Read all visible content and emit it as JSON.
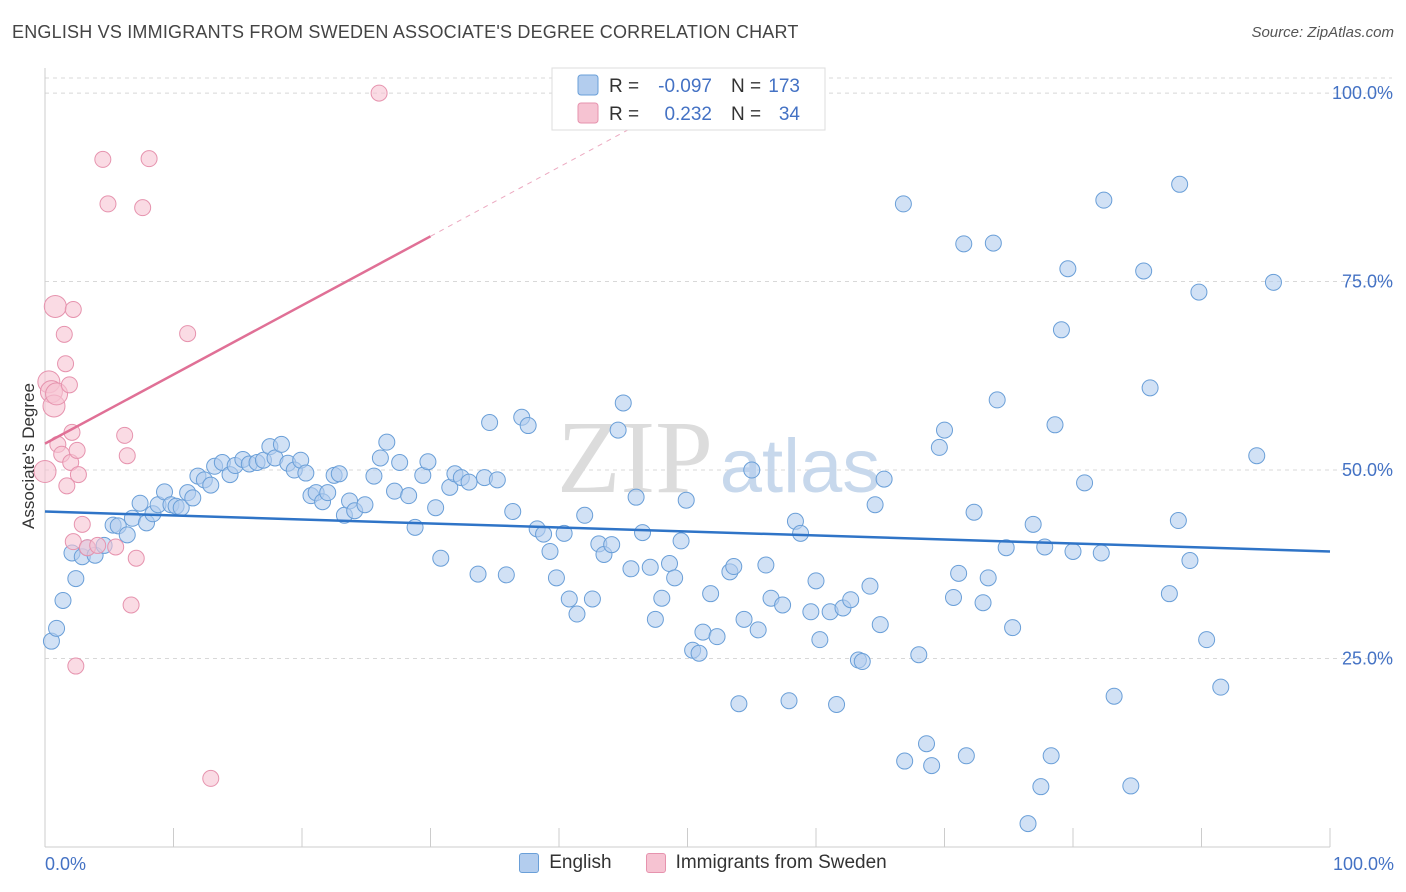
{
  "header": {
    "title": "ENGLISH VS IMMIGRANTS FROM SWEDEN ASSOCIATE'S DEGREE CORRELATION CHART",
    "source": "Source: ZipAtlas.com"
  },
  "watermark": {
    "zip": "ZIP",
    "atlas": "atlas"
  },
  "legend_box": {
    "rows": [
      {
        "r_label": "R =",
        "r_value": "-0.097",
        "n_label": "N =",
        "n_value": "173"
      },
      {
        "r_label": "R =",
        "r_value": "0.232",
        "n_label": "N =",
        "n_value": "34"
      }
    ]
  },
  "bottom_legend": {
    "items": [
      {
        "label": "English"
      },
      {
        "label": "Immigrants from Sweden"
      }
    ]
  },
  "colors": {
    "english_fill": "#b3cdee",
    "english_stroke": "#6a9fd8",
    "english_line": "#2f74c7",
    "sweden_fill": "#f6c3d2",
    "sweden_stroke": "#e693ae",
    "sweden_line": "#e07096",
    "accent_text": "#4472c4",
    "grid": "#d8d8d8"
  },
  "chart_data": {
    "type": "scatter",
    "title": "ENGLISH VS IMMIGRANTS FROM SWEDEN ASSOCIATE'S DEGREE CORRELATION CHART",
    "xlabel": "",
    "ylabel": "Associate's Degree",
    "xlim": [
      0,
      100
    ],
    "ylim": [
      0,
      102
    ],
    "x_tick_labels": [
      "0.0%",
      "100.0%"
    ],
    "y_ticks": [
      {
        "value": 25,
        "label": "25.0%"
      },
      {
        "value": 50,
        "label": "50.0%"
      },
      {
        "value": 75,
        "label": "75.0%"
      },
      {
        "value": 100,
        "label": "100.0%"
      }
    ],
    "grid": true,
    "legend_position": "top-center",
    "series": [
      {
        "name": "English",
        "R": -0.097,
        "N": 173,
        "trend": {
          "x": [
            0,
            100
          ],
          "y": [
            44.5,
            39.2
          ]
        },
        "points": [
          [
            0.5,
            27.3
          ],
          [
            0.9,
            29.0
          ],
          [
            1.4,
            32.7
          ],
          [
            2.1,
            39.0
          ],
          [
            2.4,
            35.6
          ],
          [
            2.9,
            38.5
          ],
          [
            3.3,
            39.7
          ],
          [
            3.9,
            38.7
          ],
          [
            4.6,
            40.0
          ],
          [
            5.3,
            42.7
          ],
          [
            5.7,
            42.6
          ],
          [
            6.4,
            41.4
          ],
          [
            6.8,
            43.6
          ],
          [
            7.4,
            45.6
          ],
          [
            7.9,
            43.0
          ],
          [
            8.4,
            44.2
          ],
          [
            8.8,
            45.4
          ],
          [
            9.3,
            47.1
          ],
          [
            9.8,
            45.4
          ],
          [
            10.2,
            45.2
          ],
          [
            10.6,
            45.0
          ],
          [
            11.1,
            47.0
          ],
          [
            11.5,
            46.3
          ],
          [
            11.9,
            49.2
          ],
          [
            12.4,
            48.7
          ],
          [
            12.9,
            48.0
          ],
          [
            13.2,
            50.5
          ],
          [
            13.8,
            51.0
          ],
          [
            14.4,
            49.4
          ],
          [
            14.8,
            50.6
          ],
          [
            15.4,
            51.4
          ],
          [
            15.9,
            50.8
          ],
          [
            16.5,
            51.0
          ],
          [
            17.0,
            51.3
          ],
          [
            17.5,
            53.1
          ],
          [
            17.9,
            51.6
          ],
          [
            18.4,
            53.4
          ],
          [
            18.9,
            50.9
          ],
          [
            19.4,
            50.0
          ],
          [
            19.9,
            51.3
          ],
          [
            20.3,
            49.6
          ],
          [
            20.7,
            46.6
          ],
          [
            21.1,
            47.0
          ],
          [
            21.6,
            45.8
          ],
          [
            22.0,
            47.0
          ],
          [
            22.5,
            49.3
          ],
          [
            22.9,
            49.5
          ],
          [
            23.3,
            44.0
          ],
          [
            23.7,
            45.9
          ],
          [
            24.1,
            44.6
          ],
          [
            24.9,
            45.4
          ],
          [
            25.6,
            49.2
          ],
          [
            26.1,
            51.6
          ],
          [
            26.6,
            53.7
          ],
          [
            27.2,
            47.2
          ],
          [
            27.6,
            51.0
          ],
          [
            28.3,
            46.6
          ],
          [
            28.8,
            42.4
          ],
          [
            29.4,
            49.3
          ],
          [
            29.8,
            51.1
          ],
          [
            30.4,
            45.0
          ],
          [
            30.8,
            38.3
          ],
          [
            31.5,
            47.7
          ],
          [
            31.9,
            49.5
          ],
          [
            32.4,
            49.0
          ],
          [
            33.0,
            48.4
          ],
          [
            33.7,
            36.2
          ],
          [
            34.2,
            49.0
          ],
          [
            34.6,
            56.3
          ],
          [
            35.2,
            48.7
          ],
          [
            35.9,
            36.1
          ],
          [
            36.4,
            44.5
          ],
          [
            37.1,
            57.0
          ],
          [
            37.6,
            55.9
          ],
          [
            38.3,
            42.2
          ],
          [
            38.8,
            41.5
          ],
          [
            39.3,
            39.2
          ],
          [
            39.8,
            35.7
          ],
          [
            40.4,
            41.6
          ],
          [
            40.8,
            32.9
          ],
          [
            41.4,
            30.9
          ],
          [
            42.0,
            44.0
          ],
          [
            42.6,
            32.9
          ],
          [
            43.1,
            40.2
          ],
          [
            43.5,
            38.8
          ],
          [
            44.1,
            40.1
          ],
          [
            44.6,
            55.3
          ],
          [
            45.0,
            58.9
          ],
          [
            45.6,
            36.9
          ],
          [
            46.0,
            46.4
          ],
          [
            46.5,
            41.7
          ],
          [
            47.1,
            37.1
          ],
          [
            47.5,
            30.2
          ],
          [
            48.0,
            33.0
          ],
          [
            48.6,
            37.6
          ],
          [
            49.0,
            35.7
          ],
          [
            49.5,
            40.6
          ],
          [
            49.9,
            46.0
          ],
          [
            50.4,
            26.1
          ],
          [
            50.9,
            25.7
          ],
          [
            51.2,
            28.5
          ],
          [
            51.8,
            33.6
          ],
          [
            52.3,
            27.9
          ],
          [
            53.3,
            36.5
          ],
          [
            53.6,
            37.2
          ],
          [
            54.0,
            19.0
          ],
          [
            54.4,
            30.2
          ],
          [
            55.0,
            50.0
          ],
          [
            55.5,
            28.8
          ],
          [
            56.1,
            37.4
          ],
          [
            56.5,
            33.0
          ],
          [
            57.4,
            32.1
          ],
          [
            57.9,
            19.4
          ],
          [
            58.4,
            43.2
          ],
          [
            58.8,
            41.6
          ],
          [
            59.6,
            31.2
          ],
          [
            60.0,
            35.3
          ],
          [
            60.3,
            27.5
          ],
          [
            61.1,
            31.2
          ],
          [
            61.6,
            18.9
          ],
          [
            62.1,
            31.7
          ],
          [
            62.7,
            32.8
          ],
          [
            63.3,
            24.8
          ],
          [
            63.6,
            24.6
          ],
          [
            64.2,
            34.6
          ],
          [
            64.6,
            45.4
          ],
          [
            65.0,
            29.5
          ],
          [
            65.3,
            48.8
          ],
          [
            66.9,
            11.4
          ],
          [
            68.0,
            25.5
          ],
          [
            68.6,
            13.7
          ],
          [
            69.0,
            10.8
          ],
          [
            69.6,
            53.0
          ],
          [
            70.0,
            55.3
          ],
          [
            70.7,
            33.1
          ],
          [
            71.1,
            36.3
          ],
          [
            71.5,
            80.0
          ],
          [
            71.7,
            12.1
          ],
          [
            72.3,
            44.4
          ],
          [
            73.0,
            32.4
          ],
          [
            73.4,
            35.7
          ],
          [
            74.1,
            59.3
          ],
          [
            74.8,
            39.7
          ],
          [
            75.3,
            29.1
          ],
          [
            76.5,
            3.1
          ],
          [
            76.9,
            42.8
          ],
          [
            77.5,
            8.0
          ],
          [
            77.8,
            39.8
          ],
          [
            78.3,
            12.1
          ],
          [
            78.6,
            56.0
          ],
          [
            79.1,
            68.6
          ],
          [
            80.0,
            39.2
          ],
          [
            80.9,
            48.3
          ],
          [
            82.2,
            39.0
          ],
          [
            83.2,
            20.0
          ],
          [
            84.5,
            8.1
          ],
          [
            86.0,
            60.9
          ],
          [
            87.5,
            33.6
          ],
          [
            88.2,
            43.3
          ],
          [
            89.1,
            38.0
          ],
          [
            90.4,
            27.5
          ],
          [
            91.5,
            21.2
          ],
          [
            94.3,
            51.9
          ],
          [
            66.8,
            85.3
          ],
          [
            73.8,
            80.1
          ],
          [
            79.6,
            76.7
          ],
          [
            82.4,
            85.8
          ],
          [
            85.5,
            76.4
          ],
          [
            88.3,
            87.9
          ],
          [
            89.8,
            73.6
          ],
          [
            95.6,
            74.9
          ]
        ]
      },
      {
        "name": "Immigrants from Sweden",
        "R": 0.232,
        "N": 34,
        "trend": {
          "x": [
            0,
            30
          ],
          "y": [
            53.5,
            81.0
          ]
        },
        "trend_dashed": {
          "x": [
            30,
            46
          ],
          "y": [
            81.0,
            95.7
          ]
        },
        "points": [
          [
            0.0,
            49.8
          ],
          [
            0.3,
            61.7
          ],
          [
            0.5,
            60.4
          ],
          [
            0.7,
            58.5
          ],
          [
            0.8,
            71.7
          ],
          [
            0.9,
            60.1
          ],
          [
            1.0,
            53.4
          ],
          [
            1.3,
            52.1
          ],
          [
            1.5,
            68.0
          ],
          [
            1.6,
            64.1
          ],
          [
            1.7,
            47.9
          ],
          [
            1.9,
            61.3
          ],
          [
            2.0,
            51.0
          ],
          [
            2.1,
            55.0
          ],
          [
            2.2,
            71.3
          ],
          [
            2.2,
            40.5
          ],
          [
            2.4,
            24.0
          ],
          [
            2.5,
            52.6
          ],
          [
            2.6,
            49.4
          ],
          [
            2.9,
            42.8
          ],
          [
            3.3,
            39.7
          ],
          [
            4.1,
            40.0
          ],
          [
            4.5,
            91.2
          ],
          [
            4.9,
            85.3
          ],
          [
            5.5,
            39.8
          ],
          [
            6.2,
            54.6
          ],
          [
            6.4,
            51.9
          ],
          [
            6.7,
            32.1
          ],
          [
            7.1,
            38.3
          ],
          [
            7.6,
            84.8
          ],
          [
            8.1,
            91.3
          ],
          [
            11.1,
            68.1
          ],
          [
            12.9,
            9.1
          ],
          [
            26.0,
            100.0
          ]
        ]
      }
    ]
  }
}
